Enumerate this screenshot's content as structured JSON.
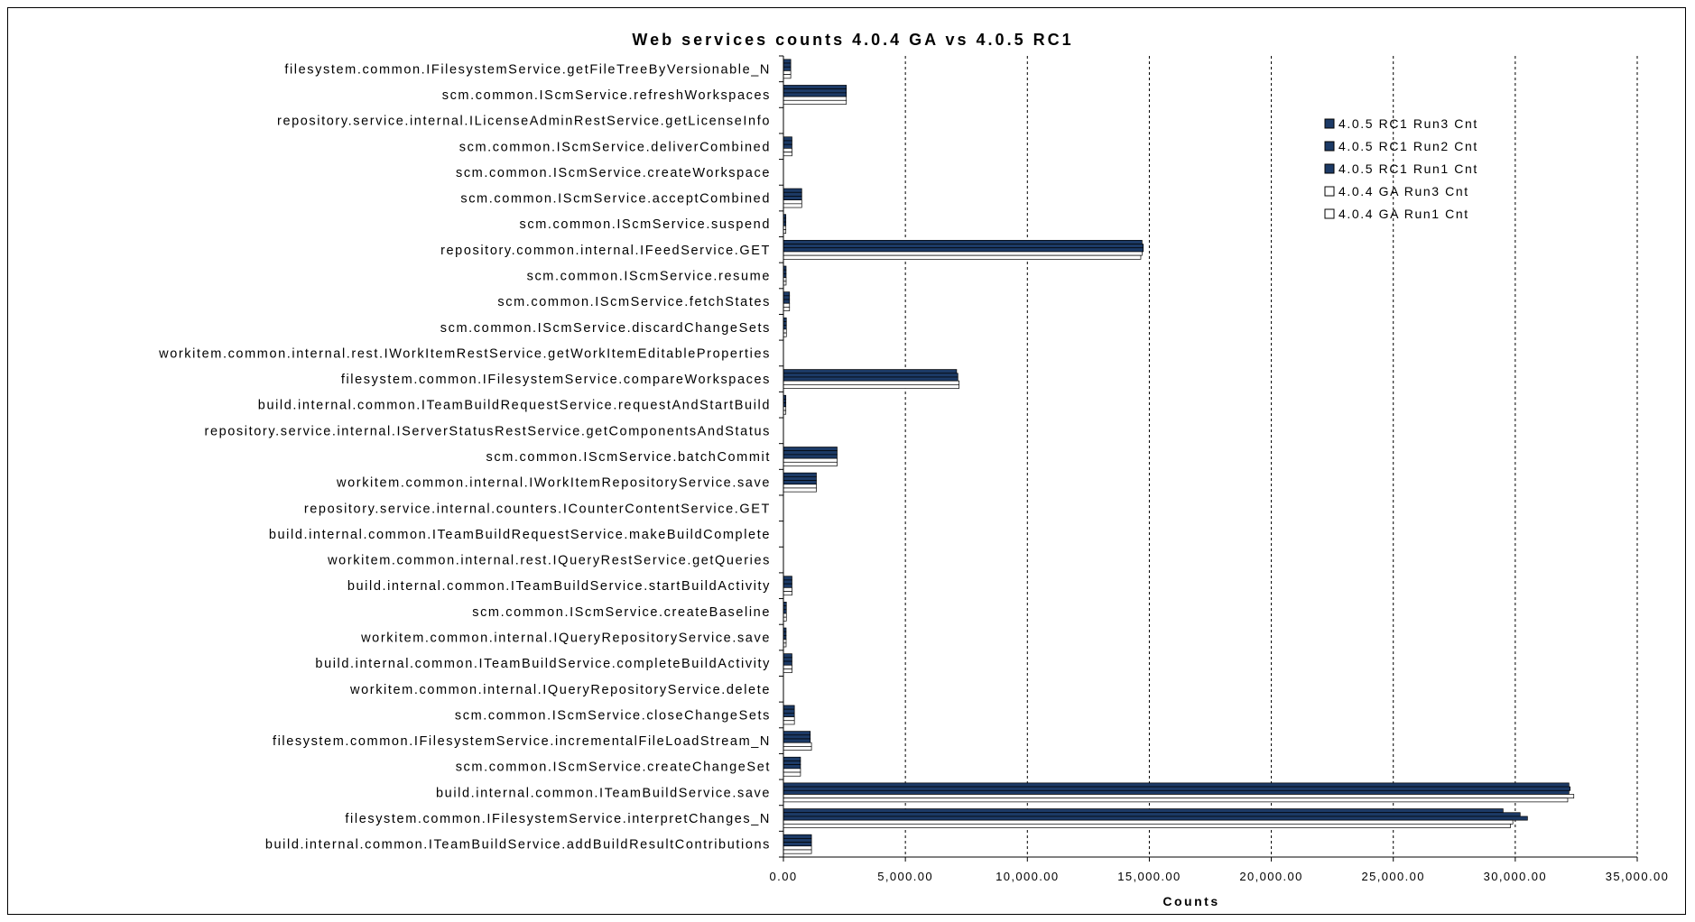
{
  "chart_data": {
    "type": "bar",
    "orientation": "horizontal",
    "title": "Web services counts 4.0.4 GA vs 4.0.5 RC1",
    "xlabel": "Counts",
    "ylabel": "",
    "xlim": [
      0,
      35000
    ],
    "xticks": [
      0,
      5000,
      10000,
      15000,
      20000,
      25000,
      30000,
      35000
    ],
    "xtick_labels": [
      "0.00",
      "5,000.00",
      "10,000.00",
      "15,000.00",
      "20,000.00",
      "25,000.00",
      "30,000.00",
      "35,000.00"
    ],
    "grid": "vertical dashed",
    "legend_position": "top-right",
    "categories": [
      "filesystem.common.IFilesystemService.getFileTreeByVersionable_N",
      "scm.common.IScmService.refreshWorkspaces",
      "repository.service.internal.ILicenseAdminRestService.getLicenseInfo",
      "scm.common.IScmService.deliverCombined",
      "scm.common.IScmService.createWorkspace",
      "scm.common.IScmService.acceptCombined",
      "scm.common.IScmService.suspend",
      "repository.common.internal.IFeedService.GET",
      "scm.common.IScmService.resume",
      "scm.common.IScmService.fetchStates",
      "scm.common.IScmService.discardChangeSets",
      "workitem.common.internal.rest.IWorkItemRestService.getWorkItemEditableProperties",
      "filesystem.common.IFilesystemService.compareWorkspaces",
      "build.internal.common.ITeamBuildRequestService.requestAndStartBuild",
      "repository.service.internal.IServerStatusRestService.getComponentsAndStatus",
      "scm.common.IScmService.batchCommit",
      "workitem.common.internal.IWorkItemRepositoryService.save",
      "repository.service.internal.counters.ICounterContentService.GET",
      "build.internal.common.ITeamBuildRequestService.makeBuildComplete",
      "workitem.common.internal.rest.IQueryRestService.getQueries",
      "build.internal.common.ITeamBuildService.startBuildActivity",
      "scm.common.IScmService.createBaseline",
      "workitem.common.internal.IQueryRepositoryService.save",
      "build.internal.common.ITeamBuildService.completeBuildActivity",
      "workitem.common.internal.IQueryRepositoryService.delete",
      "scm.common.IScmService.closeChangeSets",
      "filesystem.common.IFilesystemService.incrementalFileLoadStream_N",
      "scm.common.IScmService.createChangeSet",
      "build.internal.common.ITeamBuildService.save",
      "filesystem.common.IFilesystemService.interpretChanges_N",
      "build.internal.common.ITeamBuildService.addBuildResultContributions"
    ],
    "series": [
      {
        "name": "4.0.5 RC1 Run3 Cnt",
        "color": "#1c3a66",
        "values": [
          300,
          2580,
          0,
          350,
          0,
          750,
          100,
          14700,
          110,
          250,
          120,
          0,
          7100,
          100,
          0,
          2200,
          1350,
          0,
          0,
          0,
          350,
          120,
          110,
          350,
          0,
          450,
          1100,
          700,
          32200,
          29500,
          1150
        ]
      },
      {
        "name": "4.0.5 RC1 Run2 Cnt",
        "color": "#1c3a66",
        "values": [
          300,
          2580,
          0,
          350,
          0,
          750,
          100,
          14750,
          110,
          250,
          120,
          0,
          7150,
          100,
          0,
          2200,
          1350,
          0,
          0,
          0,
          350,
          120,
          110,
          350,
          0,
          450,
          1100,
          700,
          32250,
          30200,
          1150
        ]
      },
      {
        "name": "4.0.5 RC1 Run1 Cnt",
        "color": "#1c3a66",
        "values": [
          300,
          2580,
          0,
          350,
          0,
          750,
          100,
          14750,
          110,
          250,
          120,
          0,
          7150,
          100,
          0,
          2200,
          1350,
          0,
          0,
          0,
          350,
          120,
          110,
          350,
          0,
          450,
          1100,
          700,
          32200,
          30500,
          1150
        ]
      },
      {
        "name": "4.0.4 GA Run3 Cnt",
        "color": "#ffffff",
        "values": [
          300,
          2580,
          0,
          350,
          0,
          750,
          100,
          14700,
          110,
          250,
          120,
          0,
          7200,
          100,
          0,
          2200,
          1350,
          0,
          0,
          0,
          350,
          120,
          110,
          350,
          0,
          450,
          1150,
          700,
          32400,
          29900,
          1150
        ]
      },
      {
        "name": "4.0.4 GA Run1 Cnt",
        "color": "#ffffff",
        "values": [
          300,
          2580,
          0,
          350,
          0,
          750,
          100,
          14650,
          110,
          250,
          120,
          0,
          7200,
          100,
          0,
          2200,
          1350,
          0,
          0,
          0,
          350,
          120,
          110,
          350,
          0,
          450,
          1150,
          700,
          32150,
          29800,
          1150
        ]
      }
    ]
  }
}
